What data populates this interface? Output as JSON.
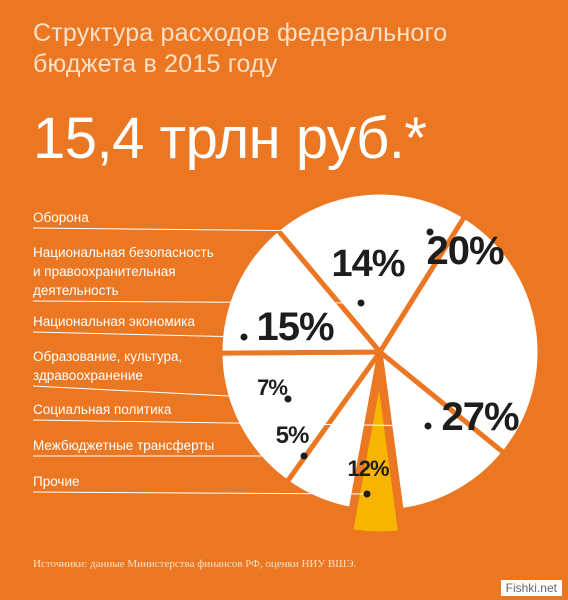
{
  "title": "Структура расходов федерального бюджета в 2015 году",
  "total": "15,4 трлн руб.*",
  "source": "Источники: данные Министерства финансов РФ, оценки НИУ ВШЭ.",
  "watermark": "Fishki.net",
  "colors": {
    "background": "#ec7722",
    "slice": "#ffffff",
    "highlight_slice": "#f7b500",
    "label_text": "#ffffff",
    "value_text": "#1d1d1b"
  },
  "chart_data": {
    "type": "pie",
    "unit": "%",
    "categories": [
      "Оборона",
      "Национальная безопасность и правоохранительная деятельность",
      "Национальная экономика",
      "Образование, культура, здравоохранение",
      "Социальная политика",
      "Межбюджетные трансферты",
      "Прочие"
    ],
    "category_lines": [
      [
        "Оборона"
      ],
      [
        "Национальная безопасность",
        "и правоохранительная",
        "деятельность"
      ],
      [
        "Национальная экономика"
      ],
      [
        "Образование, культура,",
        "здравоохранение"
      ],
      [
        "Социальная политика"
      ],
      [
        "Межбюджетные трансферты"
      ],
      [
        "Прочие"
      ]
    ],
    "values": [
      20,
      14,
      15,
      7,
      27,
      5,
      12
    ],
    "value_labels": [
      "20%",
      "14%",
      "15%",
      "7%",
      "27%",
      "5%",
      "12%"
    ],
    "highlighted": [
      "Межбюджетные трансферты"
    ]
  }
}
